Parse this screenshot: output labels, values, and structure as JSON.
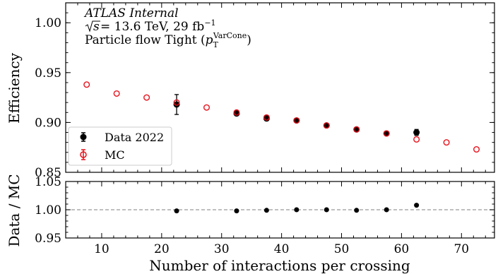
{
  "chart_data": {
    "type": "scatter",
    "annotations": {
      "experiment": "ATLAS",
      "status": "Internal",
      "energy_line": {
        "sqrt_s_label": "s",
        "energy_text": " = 13.6 TeV, 29 fb",
        "lumi_exponent": "−1"
      },
      "selection_line": {
        "prefix": "Particle flow Tight (",
        "p_symbol": "p",
        "p_subscript": "T",
        "p_superscript": "VarCone",
        "suffix": ")"
      }
    },
    "xlabel": "Number of interactions per crossing",
    "xlim": [
      4,
      75.5
    ],
    "xticks": [
      10,
      20,
      30,
      40,
      50,
      60,
      70
    ],
    "top_panel": {
      "ylabel": "Efficiency",
      "ylim": [
        0.85,
        1.02
      ],
      "yticks": [
        0.85,
        0.9,
        0.95,
        1.0
      ],
      "series": [
        {
          "name": "Data 2022",
          "color": "#000000",
          "marker": "filled-circle",
          "points": [
            {
              "x": 22.5,
              "y": 0.918,
              "err": 0.01
            },
            {
              "x": 32.5,
              "y": 0.909,
              "err": 0.002
            },
            {
              "x": 37.5,
              "y": 0.904,
              "err": 0.002
            },
            {
              "x": 42.5,
              "y": 0.902,
              "err": 0.001
            },
            {
              "x": 47.5,
              "y": 0.897,
              "err": 0.001
            },
            {
              "x": 52.5,
              "y": 0.893,
              "err": 0.001
            },
            {
              "x": 57.5,
              "y": 0.889,
              "err": 0.001
            },
            {
              "x": 62.5,
              "y": 0.89,
              "err": 0.003
            }
          ]
        },
        {
          "name": "MC",
          "color": "#e8101a",
          "marker": "open-circle",
          "points": [
            {
              "x": 7.5,
              "y": 0.938
            },
            {
              "x": 12.5,
              "y": 0.929
            },
            {
              "x": 17.5,
              "y": 0.925
            },
            {
              "x": 22.5,
              "y": 0.92
            },
            {
              "x": 27.5,
              "y": 0.915
            },
            {
              "x": 32.5,
              "y": 0.91
            },
            {
              "x": 37.5,
              "y": 0.905
            },
            {
              "x": 42.5,
              "y": 0.902
            },
            {
              "x": 47.5,
              "y": 0.897
            },
            {
              "x": 52.5,
              "y": 0.893
            },
            {
              "x": 57.5,
              "y": 0.889
            },
            {
              "x": 62.5,
              "y": 0.883
            },
            {
              "x": 67.5,
              "y": 0.88
            },
            {
              "x": 72.5,
              "y": 0.873
            }
          ]
        }
      ],
      "legend": {
        "placement": "lower-left",
        "entries": [
          "Data 2022",
          "MC"
        ]
      }
    },
    "bottom_panel": {
      "ylabel": "Data / MC",
      "ylim": [
        0.95,
        1.05
      ],
      "yticks": [
        0.95,
        1.0,
        1.05
      ],
      "reference_line": 1.0,
      "series": [
        {
          "name": "Data / MC",
          "color": "#000000",
          "points": [
            {
              "x": 22.5,
              "y": 0.998
            },
            {
              "x": 32.5,
              "y": 0.998
            },
            {
              "x": 37.5,
              "y": 0.999
            },
            {
              "x": 42.5,
              "y": 1.0
            },
            {
              "x": 47.5,
              "y": 1.0
            },
            {
              "x": 52.5,
              "y": 0.999
            },
            {
              "x": 57.5,
              "y": 1.0
            },
            {
              "x": 62.5,
              "y": 1.008
            }
          ]
        }
      ]
    },
    "grid": false
  }
}
